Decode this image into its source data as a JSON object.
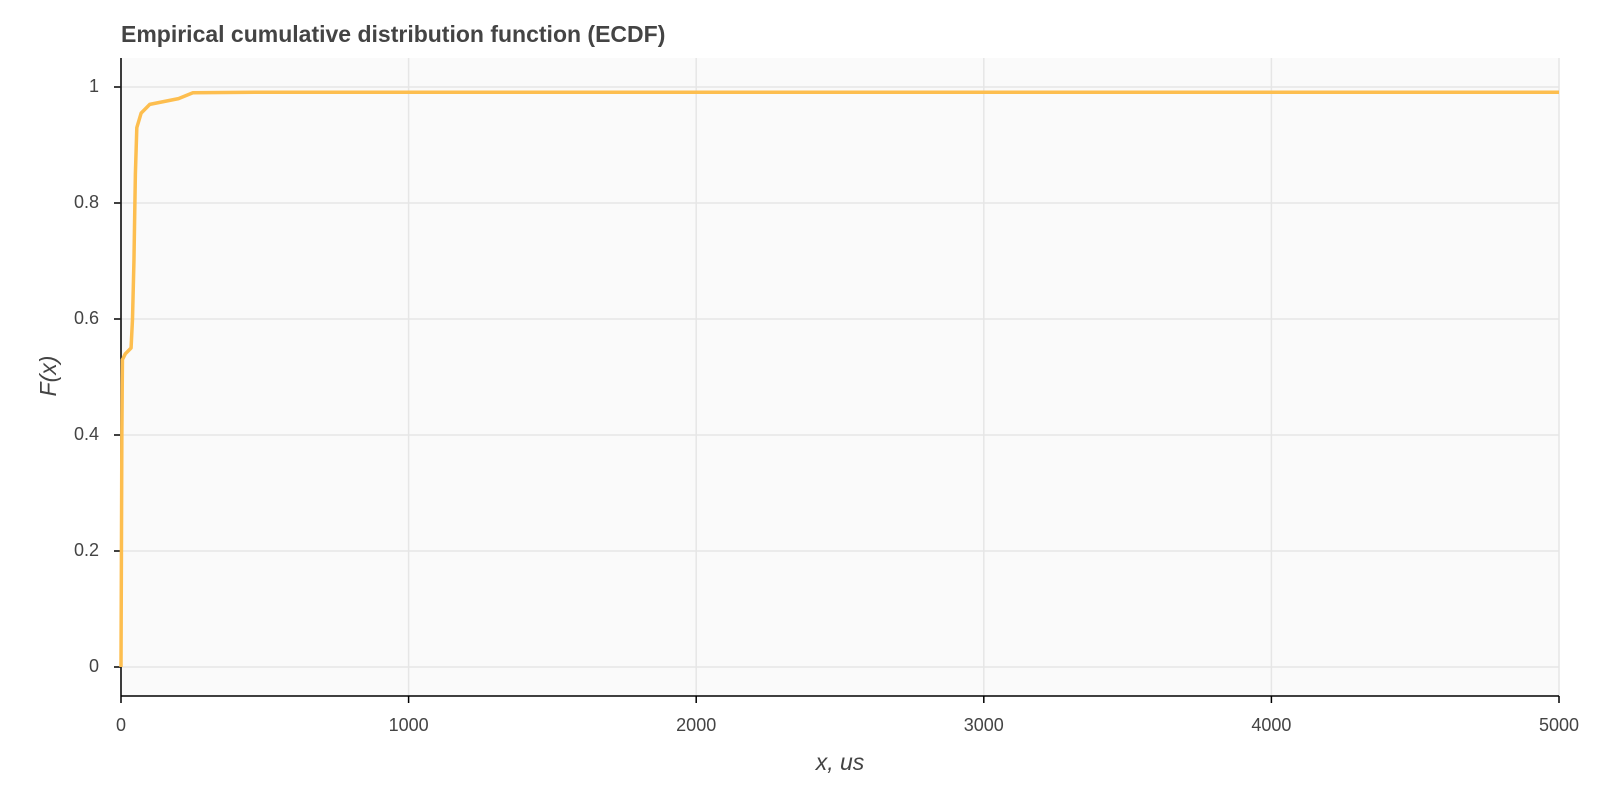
{
  "chart_data": {
    "type": "line",
    "title": "Empirical cumulative distribution function (ECDF)",
    "x_label": "x, us",
    "y_label": "F(x)",
    "x": [
      0,
      3,
      5,
      15,
      35,
      40,
      45,
      50,
      55,
      70,
      100,
      150,
      200,
      250,
      500,
      1000,
      5000
    ],
    "series": [
      {
        "name": "ECDF",
        "color": "#fdbe4f",
        "values": [
          0,
          0.4,
          0.53,
          0.54,
          0.55,
          0.6,
          0.7,
          0.85,
          0.93,
          0.955,
          0.97,
          0.975,
          0.98,
          0.99,
          0.991,
          0.991,
          0.991
        ]
      }
    ],
    "xlim": [
      0,
      5000
    ],
    "ylim": [
      -0.05,
      1.05
    ],
    "xticks": [
      0,
      1000,
      2000,
      3000,
      4000,
      5000
    ],
    "yticks": [
      0,
      0.2,
      0.4,
      0.6,
      0.8,
      1
    ],
    "grid": true
  }
}
